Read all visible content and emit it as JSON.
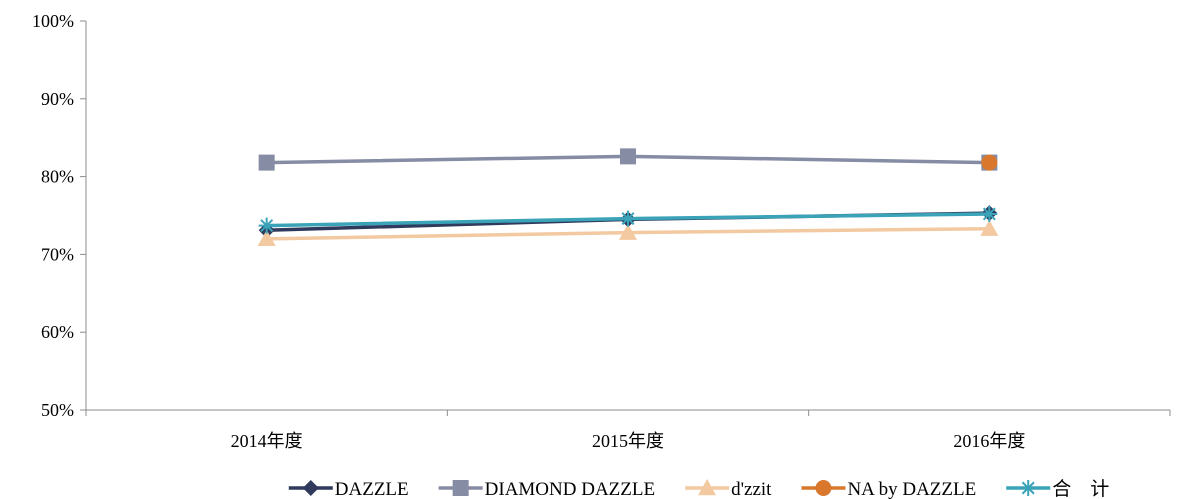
{
  "chart_data": {
    "type": "line",
    "title": "",
    "xlabel": "",
    "ylabel": "",
    "categories": [
      "2014年度",
      "2015年度",
      "2016年度"
    ],
    "ylim": [
      0.5,
      1.0
    ],
    "yticks": [
      0.5,
      0.6,
      0.7,
      0.8,
      0.9,
      1.0
    ],
    "ytick_labels": [
      "50%",
      "60%",
      "70%",
      "80%",
      "90%",
      "100%"
    ],
    "grid": false,
    "legend_position": "bottom",
    "series": [
      {
        "name": "DAZZLE",
        "values": [
          0.731,
          0.745,
          0.753
        ],
        "color": "#2f3a5c",
        "marker": "diamond"
      },
      {
        "name": "DIAMOND DAZZLE",
        "values": [
          0.818,
          0.826,
          0.818
        ],
        "color": "#858ca3",
        "marker": "square"
      },
      {
        "name": "d'zzit",
        "values": [
          0.72,
          0.728,
          0.733
        ],
        "color": "#f2c9a0",
        "marker": "triangle"
      },
      {
        "name": "NA by DAZZLE",
        "values": [
          null,
          null,
          0.818
        ],
        "color": "#d9782c",
        "marker": "circle"
      },
      {
        "name": "合　计",
        "values": [
          0.737,
          0.746,
          0.752
        ],
        "color": "#3aa3b8",
        "marker": "star"
      }
    ]
  }
}
